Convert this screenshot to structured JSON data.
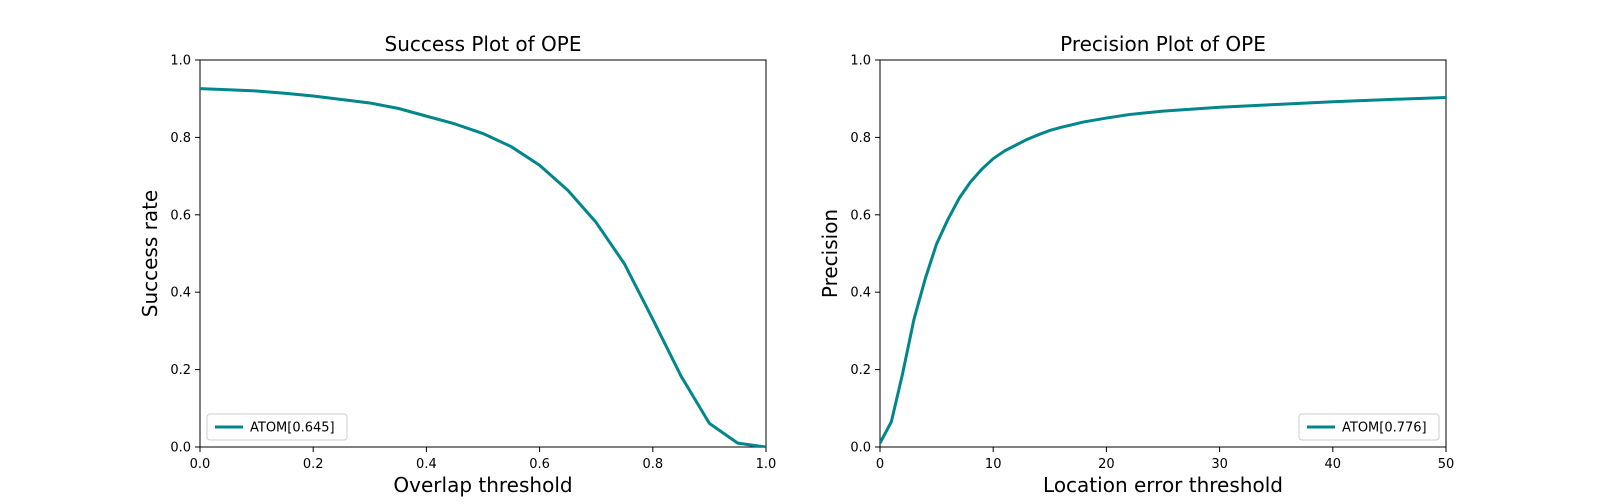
{
  "chart_data": [
    {
      "type": "line",
      "title": "Success Plot of OPE",
      "xlabel": "Overlap threshold",
      "ylabel": "Success rate",
      "xlim": [
        0,
        1
      ],
      "ylim": [
        0,
        1
      ],
      "xticks": [
        "0.0",
        "0.2",
        "0.4",
        "0.6",
        "0.8",
        "1.0"
      ],
      "yticks": [
        "0.0",
        "0.2",
        "0.4",
        "0.6",
        "0.8",
        "1.0"
      ],
      "grid": false,
      "legend_position": "lower-left",
      "series": [
        {
          "name": "ATOM[0.645]",
          "color": "#00868b",
          "x": [
            0.0,
            0.05,
            0.1,
            0.15,
            0.2,
            0.25,
            0.3,
            0.35,
            0.4,
            0.45,
            0.5,
            0.55,
            0.6,
            0.65,
            0.7,
            0.75,
            0.8,
            0.85,
            0.9,
            0.95,
            1.0
          ],
          "y": [
            0.926,
            0.923,
            0.92,
            0.914,
            0.907,
            0.898,
            0.889,
            0.875,
            0.855,
            0.835,
            0.81,
            0.776,
            0.728,
            0.663,
            0.58,
            0.473,
            0.33,
            0.183,
            0.061,
            0.01,
            0.0
          ]
        }
      ]
    },
    {
      "type": "line",
      "title": "Precision Plot of OPE",
      "xlabel": "Location error threshold",
      "ylabel": "Precision",
      "xlim": [
        0,
        50
      ],
      "ylim": [
        0,
        1
      ],
      "xticks": [
        "0",
        "10",
        "20",
        "30",
        "40",
        "50"
      ],
      "yticks": [
        "0.0",
        "0.2",
        "0.4",
        "0.6",
        "0.8",
        "1.0"
      ],
      "grid": false,
      "legend_position": "lower-right",
      "series": [
        {
          "name": "ATOM[0.776]",
          "color": "#00868b",
          "x": [
            0,
            1,
            2,
            3,
            4,
            5,
            6,
            7,
            8,
            9,
            10,
            11,
            12,
            13,
            14,
            15,
            16,
            18,
            20,
            22,
            25,
            30,
            35,
            40,
            45,
            50
          ],
          "y": [
            0.01,
            0.065,
            0.19,
            0.33,
            0.435,
            0.525,
            0.588,
            0.643,
            0.685,
            0.718,
            0.745,
            0.765,
            0.78,
            0.795,
            0.807,
            0.818,
            0.826,
            0.84,
            0.85,
            0.859,
            0.868,
            0.878,
            0.885,
            0.892,
            0.898,
            0.903
          ]
        }
      ]
    }
  ]
}
